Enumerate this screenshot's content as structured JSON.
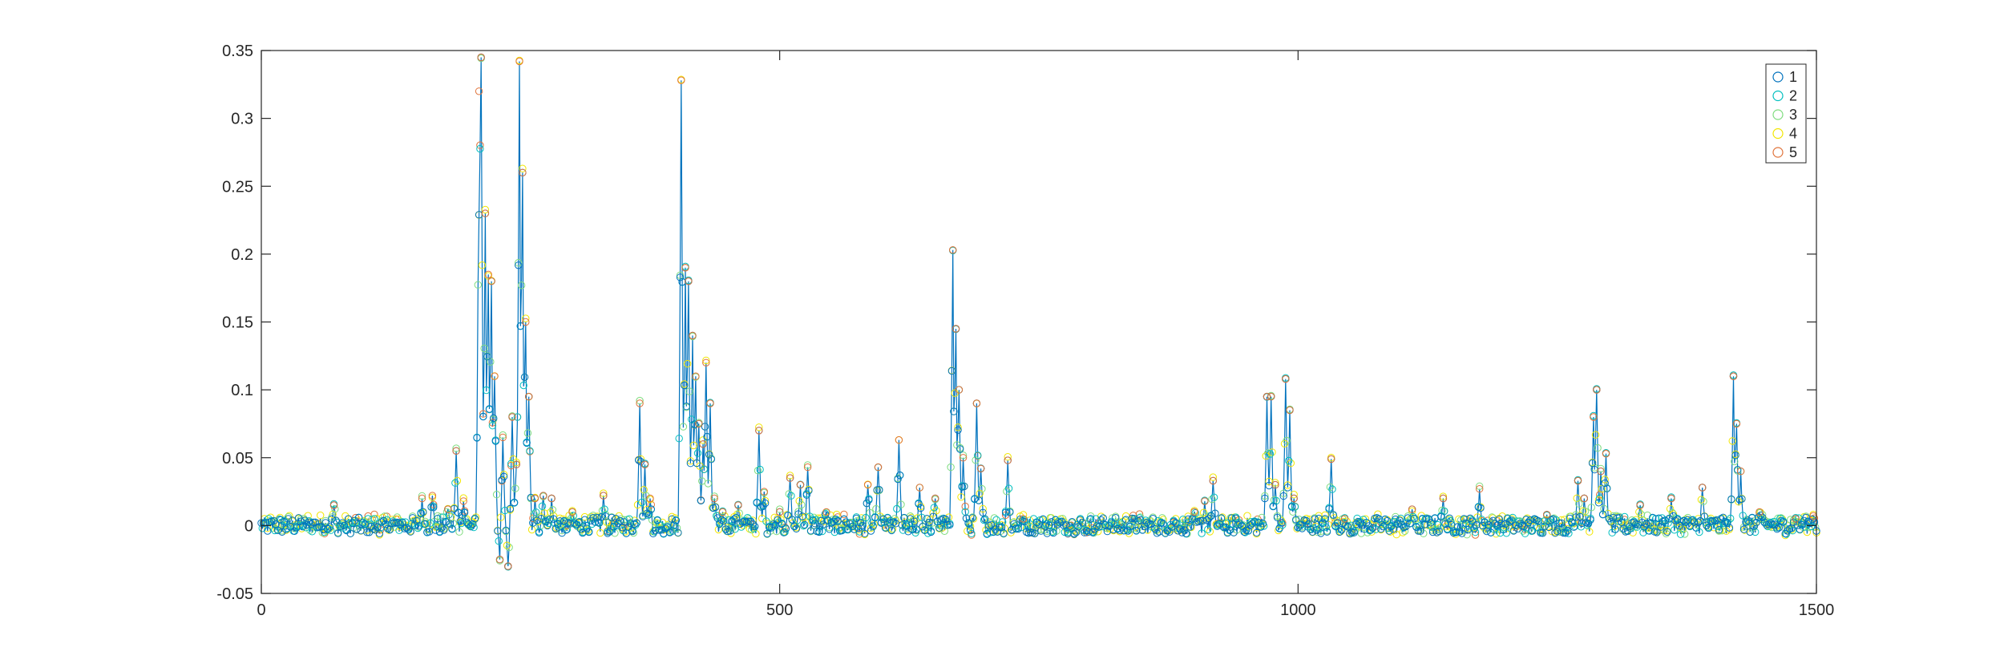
{
  "chart_data": {
    "type": "scatter",
    "title": "",
    "xlabel": "",
    "ylabel": "",
    "xlim": [
      0,
      1500
    ],
    "ylim": [
      -0.05,
      0.35
    ],
    "x_ticks": [
      0,
      500,
      1000,
      1500
    ],
    "x_tick_labels": [
      "0",
      "500",
      "1000",
      "1500"
    ],
    "y_ticks": [
      -0.05,
      0,
      0.05,
      0.1,
      0.15,
      0.2,
      0.25,
      0.3,
      0.35
    ],
    "y_tick_labels": [
      "-0.05",
      "0",
      "0.05",
      "0.1",
      "0.15",
      "0.2",
      "0.25",
      "0.3",
      "0.35"
    ],
    "grid": false,
    "legend_position": "top-right",
    "line_connects": "1",
    "series": [
      {
        "name": "1",
        "color": "#0072bd",
        "marker": "circle"
      },
      {
        "name": "2",
        "color": "#00bfbf",
        "marker": "circle"
      },
      {
        "name": "3",
        "color": "#7fdc7f",
        "marker": "circle"
      },
      {
        "name": "4",
        "color": "#f2e600",
        "marker": "circle"
      },
      {
        "name": "5",
        "color": "#e0733a",
        "marker": "circle"
      }
    ],
    "peaks": [
      [
        70,
        0.015
      ],
      [
        155,
        0.02
      ],
      [
        165,
        0.022
      ],
      [
        180,
        0.012
      ],
      [
        188,
        0.055
      ],
      [
        195,
        0.018
      ],
      [
        210,
        0.32
      ],
      [
        212,
        0.345
      ],
      [
        216,
        0.23
      ],
      [
        219,
        0.185
      ],
      [
        222,
        0.18
      ],
      [
        225,
        0.11
      ],
      [
        230,
        -0.025
      ],
      [
        233,
        0.065
      ],
      [
        238,
        -0.03
      ],
      [
        242,
        0.08
      ],
      [
        246,
        0.045
      ],
      [
        249,
        0.342
      ],
      [
        252,
        0.26
      ],
      [
        255,
        0.15
      ],
      [
        258,
        0.095
      ],
      [
        264,
        0.02
      ],
      [
        272,
        0.022
      ],
      [
        280,
        0.02
      ],
      [
        300,
        0.01
      ],
      [
        330,
        0.022
      ],
      [
        365,
        0.09
      ],
      [
        370,
        0.045
      ],
      [
        375,
        0.02
      ],
      [
        405,
        0.328
      ],
      [
        409,
        0.19
      ],
      [
        412,
        0.18
      ],
      [
        416,
        0.14
      ],
      [
        419,
        0.11
      ],
      [
        422,
        0.075
      ],
      [
        426,
        0.06
      ],
      [
        429,
        0.12
      ],
      [
        433,
        0.09
      ],
      [
        437,
        0.02
      ],
      [
        445,
        0.01
      ],
      [
        460,
        0.015
      ],
      [
        480,
        0.07
      ],
      [
        485,
        0.025
      ],
      [
        500,
        0.01
      ],
      [
        510,
        0.035
      ],
      [
        520,
        0.03
      ],
      [
        527,
        0.043
      ],
      [
        545,
        0.01
      ],
      [
        585,
        0.03
      ],
      [
        595,
        0.043
      ],
      [
        615,
        0.063
      ],
      [
        635,
        0.028
      ],
      [
        650,
        0.02
      ],
      [
        667,
        0.203
      ],
      [
        670,
        0.145
      ],
      [
        673,
        0.1
      ],
      [
        677,
        0.05
      ],
      [
        690,
        0.09
      ],
      [
        694,
        0.042
      ],
      [
        720,
        0.048
      ],
      [
        735,
        0.005
      ],
      [
        900,
        0.01
      ],
      [
        910,
        0.018
      ],
      [
        918,
        0.033
      ],
      [
        970,
        0.095
      ],
      [
        974,
        0.095
      ],
      [
        978,
        0.03
      ],
      [
        988,
        0.108
      ],
      [
        992,
        0.085
      ],
      [
        996,
        0.02
      ],
      [
        1032,
        0.049
      ],
      [
        1045,
        0.005
      ],
      [
        1110,
        0.012
      ],
      [
        1140,
        0.02
      ],
      [
        1175,
        0.027
      ],
      [
        1240,
        0.008
      ],
      [
        1270,
        0.033
      ],
      [
        1276,
        0.02
      ],
      [
        1285,
        0.08
      ],
      [
        1288,
        0.1
      ],
      [
        1292,
        0.04
      ],
      [
        1297,
        0.053
      ],
      [
        1330,
        0.015
      ],
      [
        1360,
        0.02
      ],
      [
        1390,
        0.028
      ],
      [
        1420,
        0.11
      ],
      [
        1423,
        0.075
      ],
      [
        1427,
        0.04
      ],
      [
        1445,
        0.01
      ],
      [
        1480,
        0.005
      ],
      [
        1497,
        0.007
      ]
    ],
    "baseline_noise": 0.006
  }
}
